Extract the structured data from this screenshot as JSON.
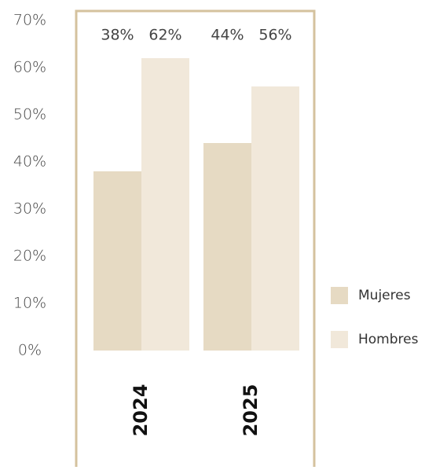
{
  "chart_data": {
    "type": "bar",
    "categories": [
      "2024",
      "2025"
    ],
    "series": [
      {
        "name": "Mujeres",
        "color": "#e6dac3",
        "values": [
          38,
          44
        ],
        "value_labels": [
          "38%",
          "44%"
        ]
      },
      {
        "name": "Hombres",
        "color": "#f1e8da",
        "values": [
          62,
          56
        ],
        "value_labels": [
          "62%",
          "56%"
        ]
      }
    ],
    "ylim": [
      0,
      70
    ],
    "yticks": [
      {
        "value": 0,
        "label": "0%"
      },
      {
        "value": 10,
        "label": "10%"
      },
      {
        "value": 20,
        "label": "20%"
      },
      {
        "value": 30,
        "label": "30%"
      },
      {
        "value": 40,
        "label": "40%"
      },
      {
        "value": 50,
        "label": "50%"
      },
      {
        "value": 60,
        "label": "60%"
      },
      {
        "value": 70,
        "label": "70%"
      }
    ],
    "legend": "right"
  }
}
